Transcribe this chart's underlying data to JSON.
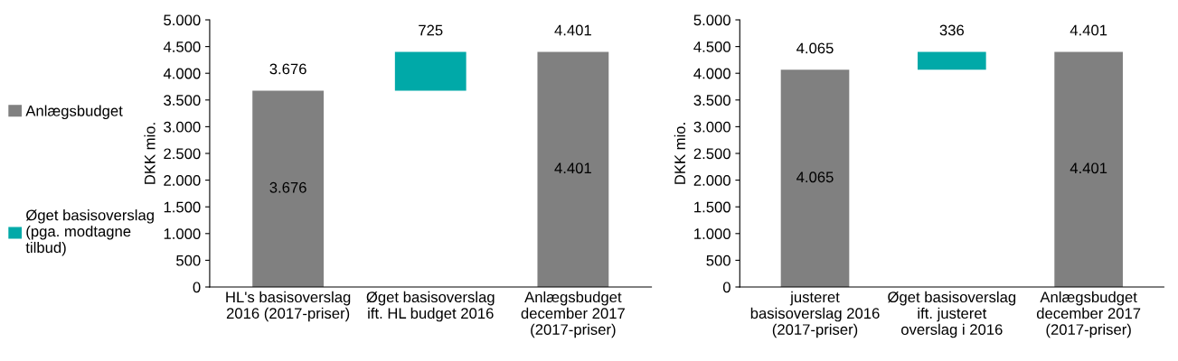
{
  "chart_data": [
    {
      "type": "bar",
      "ylabel": "DKK mio.",
      "categories": [
        "HL's basisoverslag\n2016 (2017-priser)",
        "Øget basisoverslag\nift. HL budget 2016",
        "Anlægsbudget\ndecember 2017\n(2017-priser)"
      ],
      "series": [
        {
          "name": "Anlægsbudget",
          "color": "#808080",
          "values": [
            3676,
            null,
            4401
          ],
          "value_labels": [
            "3.676",
            null,
            "4.401"
          ]
        },
        {
          "name": "Øget basisoverslag\n(pga. modtagne\ntilbud)",
          "color": "#00a9a8",
          "values": [
            null,
            725,
            null
          ],
          "base": [
            null,
            3676,
            null
          ]
        }
      ],
      "totals": [
        "3.676",
        "725",
        "4.401"
      ],
      "ylim": [
        0,
        5000
      ],
      "yticks": [
        0,
        500,
        {
          "value": 1000,
          "label": "1.000"
        },
        {
          "value": 1500,
          "label": "1.500"
        },
        {
          "value": 2000,
          "label": "2.000"
        },
        {
          "value": 2500,
          "label": "2.500"
        },
        {
          "value": 3000,
          "label": "3.000"
        },
        {
          "value": 3500,
          "label": "3.500"
        },
        {
          "value": 4000,
          "label": "4.000"
        },
        {
          "value": 4500,
          "label": "4.500"
        },
        {
          "value": 5000,
          "label": "5.000"
        }
      ],
      "legend": "left",
      "grid": false
    },
    {
      "type": "bar",
      "ylabel": "DKK mio.",
      "categories": [
        "justeret\nbasisoverslag 2016\n(2017-priser)",
        "Øget basisoverslag\nift. justeret\noverslag i 2016",
        "Anlægsbudget\ndecember 2017\n(2017-priser)"
      ],
      "series": [
        {
          "color": "#808080",
          "values": [
            4065,
            null,
            4401
          ],
          "value_labels": [
            "4.065",
            null,
            "4.401"
          ]
        },
        {
          "color": "#00a9a8",
          "values": [
            null,
            336,
            null
          ],
          "base": [
            null,
            4065,
            null
          ]
        }
      ],
      "totals": [
        "4.065",
        "336",
        "4.401"
      ],
      "ylim": [
        0,
        5000
      ],
      "yticks": [
        0,
        500,
        {
          "value": 1000,
          "label": "1.000"
        },
        {
          "value": 1500,
          "label": "1.500"
        },
        {
          "value": 2000,
          "label": "2.000"
        },
        {
          "value": 2500,
          "label": "2.500"
        },
        {
          "value": 3000,
          "label": "3.000"
        },
        {
          "value": 3500,
          "label": "3.500"
        },
        {
          "value": 4000,
          "label": "4.000"
        },
        {
          "value": 4500,
          "label": "4.500"
        },
        {
          "value": 5000,
          "label": "5.000"
        }
      ],
      "legend": false,
      "grid": false
    }
  ]
}
